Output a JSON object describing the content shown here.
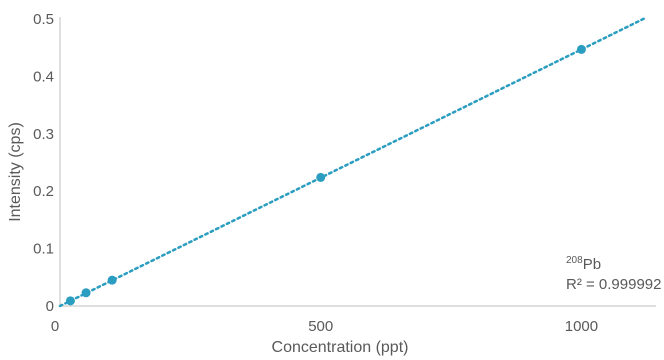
{
  "chart_data": {
    "type": "scatter",
    "xlabel": "Concentration (ppt)",
    "ylabel": "Intensity (cps)",
    "xlim": [
      0,
      1120
    ],
    "ylim": [
      0,
      0.5
    ],
    "x_ticks": [
      0,
      500,
      1000
    ],
    "y_ticks": [
      0,
      0.1,
      0.2,
      0.3,
      0.4,
      0.5
    ],
    "x_tick_labels": [
      "0",
      "500",
      "1000"
    ],
    "y_tick_labels": [
      "0",
      "0.1",
      "0.2",
      "0.3",
      "0.4",
      "0.5"
    ],
    "grid": false,
    "series": [
      {
        "color": "#2a9dc0",
        "x": [
          20,
          50,
          100,
          500,
          1000
        ],
        "y": [
          0.009,
          0.023,
          0.045,
          0.224,
          0.447
        ]
      }
    ],
    "trendline": {
      "style": "dotted",
      "color": "#2a9dc0",
      "slope": 0.000447,
      "intercept": 0.0,
      "x_range": [
        0,
        1120
      ]
    },
    "annotation": {
      "isotope_mass": "208",
      "isotope_symbol": "Pb",
      "r_squared": "R² = 0.999992"
    }
  }
}
